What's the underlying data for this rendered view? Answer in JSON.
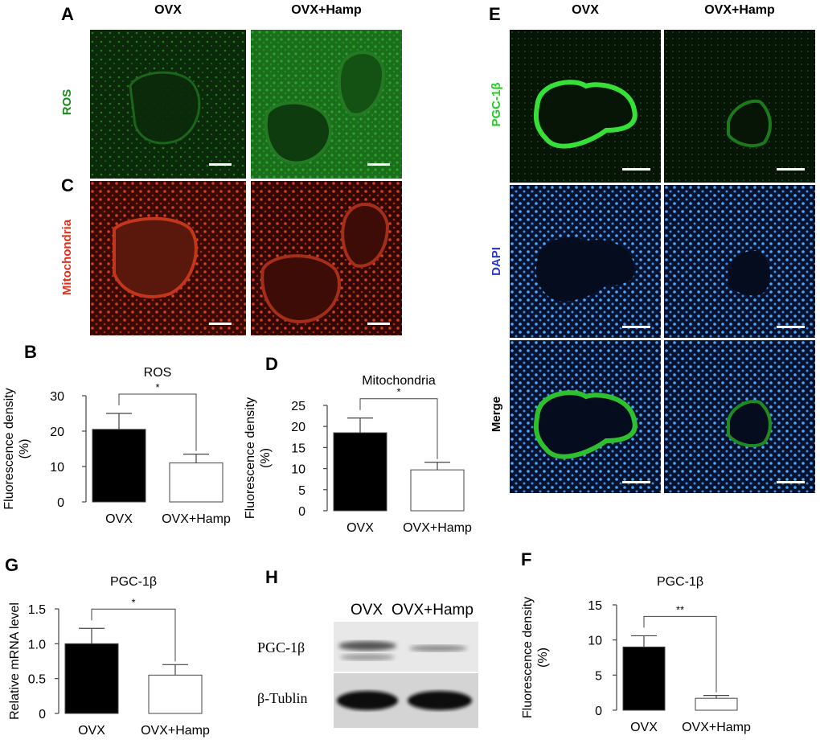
{
  "panels": {
    "A": {
      "letter": "A"
    },
    "B": {
      "letter": "B"
    },
    "C": {
      "letter": "C"
    },
    "D": {
      "letter": "D"
    },
    "E": {
      "letter": "E"
    },
    "F": {
      "letter": "F"
    },
    "G": {
      "letter": "G"
    },
    "H": {
      "letter": "H"
    }
  },
  "micrographs_left": {
    "col_headers": [
      "OVX",
      "OVX+Hamp"
    ],
    "row_labels": [
      "ROS",
      "Mitochondria"
    ],
    "colors": {
      "ros": "#1a8a1a",
      "mito": "#e0301a"
    }
  },
  "micrographs_right": {
    "col_headers": [
      "OVX",
      "OVX+Hamp"
    ],
    "row_labels": [
      "PGC-1β",
      "DAPI",
      "Merge"
    ],
    "colors": {
      "pgc": "#22cc22",
      "dapi": "#2a36c8",
      "merge": "#000000"
    }
  },
  "western_blot": {
    "col_headers": [
      "OVX",
      "OVX+Hamp"
    ],
    "row_labels": [
      "PGC-1β",
      "β-Tublin"
    ]
  },
  "chart_data": [
    {
      "id": "B",
      "type": "bar",
      "title": "ROS",
      "ylabel": "Fluorescence density (%)",
      "ylabel_lines": [
        "Fluorescence density",
        "(%)"
      ],
      "categories": [
        "OVX",
        "OVX+Hamp"
      ],
      "values": [
        20.5,
        11
      ],
      "errors": [
        4.5,
        2.5
      ],
      "fills": [
        "#000000",
        "#ffffff"
      ],
      "ylim": [
        0,
        30
      ],
      "yticks": [
        0,
        10,
        20,
        30
      ],
      "ytick_labels": [
        "0",
        "10",
        "20",
        "30"
      ],
      "significance": "*"
    },
    {
      "id": "D",
      "type": "bar",
      "title": "Mitochondria",
      "ylabel": "Fluorescence density (%)",
      "ylabel_lines": [
        "Fluorescence density",
        "(%)"
      ],
      "categories": [
        "OVX",
        "OVX+Hamp"
      ],
      "values": [
        18.5,
        9.7
      ],
      "errors": [
        3.5,
        1.8
      ],
      "fills": [
        "#000000",
        "#ffffff"
      ],
      "ylim": [
        0,
        25
      ],
      "yticks": [
        0,
        5,
        10,
        15,
        20,
        25
      ],
      "ytick_labels": [
        "0",
        "5",
        "10",
        "15",
        "20",
        "25"
      ],
      "significance": "*"
    },
    {
      "id": "G",
      "type": "bar",
      "title": "PGC-1β",
      "ylabel": "Relative mRNA level",
      "ylabel_lines": [
        "Relative mRNA level"
      ],
      "categories": [
        "OVX",
        "OVX+Hamp"
      ],
      "values": [
        1.0,
        0.55
      ],
      "errors": [
        0.22,
        0.15
      ],
      "fills": [
        "#000000",
        "#ffffff"
      ],
      "ylim": [
        0,
        1.5
      ],
      "yticks": [
        0,
        0.5,
        1.0,
        1.5
      ],
      "ytick_labels": [
        "0",
        "0.5",
        "1.0",
        "1.5"
      ],
      "significance": "*"
    },
    {
      "id": "F",
      "type": "bar",
      "title": "PGC-1β",
      "ylabel": "Fluorescence density (%)",
      "ylabel_lines": [
        "Fluorescence density",
        "(%)"
      ],
      "categories": [
        "OVX",
        "OVX+Hamp"
      ],
      "values": [
        9.0,
        1.7
      ],
      "errors": [
        1.6,
        0.4
      ],
      "fills": [
        "#000000",
        "#ffffff"
      ],
      "ylim": [
        0,
        15
      ],
      "yticks": [
        0,
        5,
        10,
        15
      ],
      "ytick_labels": [
        "0",
        "5",
        "10",
        "15"
      ],
      "significance": "**"
    }
  ]
}
